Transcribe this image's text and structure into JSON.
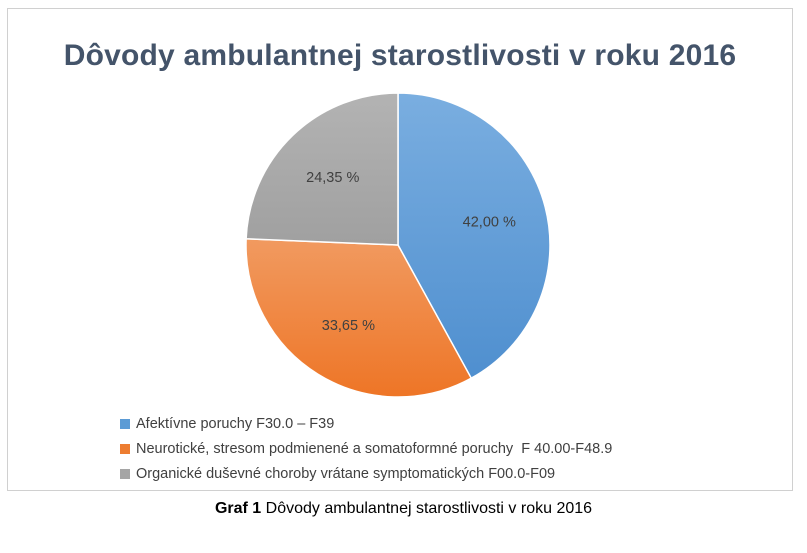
{
  "chart_data": {
    "type": "pie",
    "title": "Dôvody ambulantnej starostlivosti v roku 2016",
    "slices": [
      {
        "label": "Afektívne poruchy F30.0 – F39",
        "value": 42.0,
        "display": "42,00 %",
        "color": "#5b9bd5"
      },
      {
        "label": "Neurotické, stresom podmienené a somatoformné poruchy  F 40.00-F48.9",
        "value": 33.65,
        "display": "33,65 %",
        "color": "#ed7d31"
      },
      {
        "label": "Organické duševné choroby vrátane symptomatických F00.0-F09",
        "value": 24.35,
        "display": "24,35 %",
        "color": "#a5a5a5"
      }
    ],
    "legend_position": "bottom"
  },
  "caption": {
    "prefix": "Graf 1",
    "text": " Dôvody ambulantnej starostlivosti v roku 2016"
  }
}
